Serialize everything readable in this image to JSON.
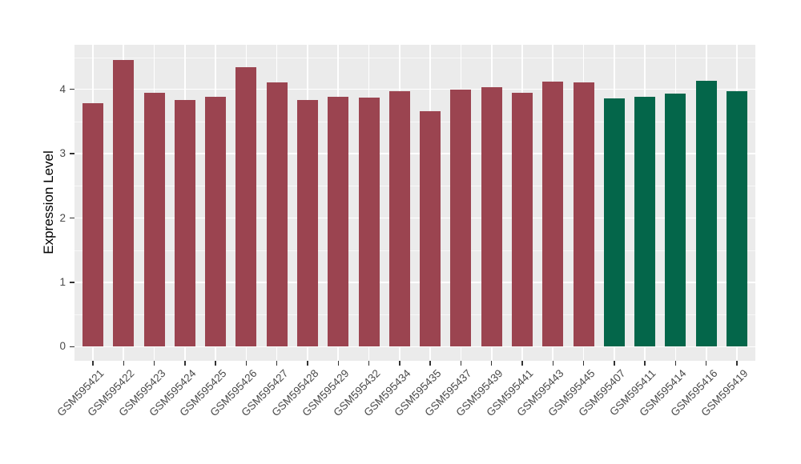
{
  "figure": {
    "background": "#FFFFFF",
    "panel_background": "#EBEBEB",
    "grid_major_color": "#FFFFFF",
    "grid_minor_color": "rgba(255,255,255,0.65)",
    "axis_tick_color": "#333333",
    "axis_text_color": "#4A4A4A"
  },
  "chart_data": {
    "type": "bar",
    "title": "",
    "xlabel": "",
    "ylabel": "Expression Level",
    "ylim": [
      0,
      4.69
    ],
    "yticks": [
      0,
      1,
      2,
      3,
      4
    ],
    "grid": "horizontal major+minor, vertical major at category centers",
    "legend": "none",
    "categories": [
      "GSM595421",
      "GSM595422",
      "GSM595423",
      "GSM595424",
      "GSM595425",
      "GSM595426",
      "GSM595427",
      "GSM595428",
      "GSM595429",
      "GSM595432",
      "GSM595434",
      "GSM595435",
      "GSM595437",
      "GSM595439",
      "GSM595441",
      "GSM595443",
      "GSM595445",
      "GSM595407",
      "GSM595411",
      "GSM595414",
      "GSM595416",
      "GSM595419"
    ],
    "values": [
      3.78,
      4.46,
      3.95,
      3.83,
      3.88,
      4.35,
      4.11,
      3.83,
      3.88,
      3.87,
      3.97,
      3.66,
      4.0,
      4.03,
      3.95,
      4.12,
      4.11,
      3.86,
      3.89,
      3.94,
      4.13,
      3.97
    ],
    "groups": [
      "maroon",
      "maroon",
      "maroon",
      "maroon",
      "maroon",
      "maroon",
      "maroon",
      "maroon",
      "maroon",
      "maroon",
      "maroon",
      "maroon",
      "maroon",
      "maroon",
      "maroon",
      "maroon",
      "maroon",
      "green",
      "green",
      "green",
      "green",
      "green"
    ],
    "group_colors": {
      "maroon": "#9B4450",
      "green": "#04664A"
    }
  }
}
